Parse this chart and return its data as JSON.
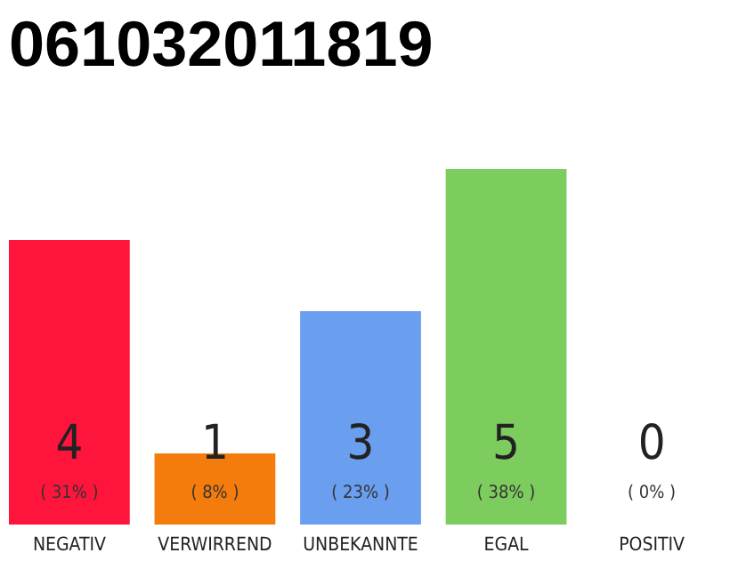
{
  "chart_data": {
    "type": "bar",
    "title": "061032011819",
    "categories": [
      "NEGATIV",
      "VERWIRREND",
      "UNBEKANNTE",
      "EGAL",
      "POSITIV"
    ],
    "values": [
      4,
      1,
      3,
      5,
      0
    ],
    "colors": [
      "#ff143c",
      "#f47c0c",
      "#6a9eee",
      "#7dcc5e",
      "#cccccc"
    ],
    "data_labels": true,
    "annotations": [
      "( 31% )",
      "( 8% )",
      "( 23% )",
      "( 38% )",
      "( 0% )"
    ],
    "ylim": [
      0,
      5
    ],
    "tick_labels": "x"
  }
}
